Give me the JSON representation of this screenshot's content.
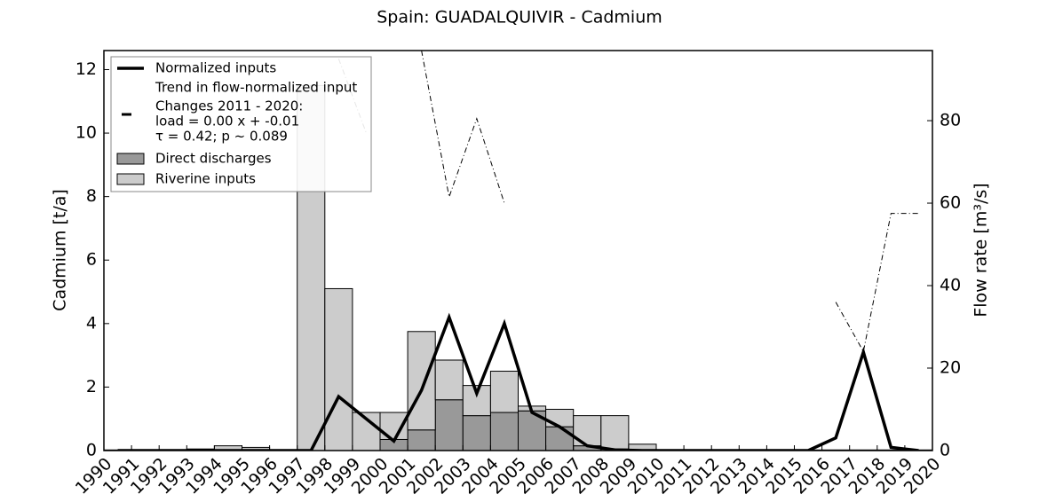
{
  "chart_data": {
    "type": "bar",
    "title": "Spain: GUADALQUIVIR - Cadmium",
    "ylabel": "Cadmium [t/a]",
    "y2label": "Flow rate [m³/s]",
    "xlim": [
      1990,
      2020
    ],
    "xticks": [
      1990,
      1991,
      1992,
      1993,
      1994,
      1995,
      1996,
      1997,
      1998,
      1999,
      2000,
      2001,
      2002,
      2003,
      2004,
      2005,
      2006,
      2007,
      2008,
      2009,
      2010,
      2011,
      2012,
      2013,
      2014,
      2015,
      2016,
      2017,
      2018,
      2019,
      2020
    ],
    "ylim": [
      0,
      12.6
    ],
    "yticks": [
      0,
      2,
      4,
      6,
      8,
      10,
      12
    ],
    "y2lim": [
      0,
      97
    ],
    "y2ticks": [
      0,
      20,
      40,
      60,
      80
    ],
    "series": [
      {
        "name": "Normalized inputs",
        "type": "line",
        "color": "#000000",
        "x": [
          1990.5,
          1991.5,
          1992.5,
          1993.5,
          1994.5,
          1995.5,
          1996.5,
          1997.5,
          1998.5,
          1999.5,
          2000.5,
          2001.5,
          2002.5,
          2003.5,
          2004.5,
          2005.5,
          2006.5,
          2007.5,
          2008.5,
          2009.5,
          2010.5,
          2011.5,
          2012.5,
          2013.5,
          2014.5,
          2015.5,
          2016.5,
          2017.5,
          2018.5,
          2019.5
        ],
        "values": [
          0,
          0,
          0,
          0,
          0,
          0,
          0,
          0,
          1.7,
          1.0,
          0.3,
          1.9,
          4.2,
          1.8,
          4.0,
          1.2,
          0.75,
          0.15,
          0.02,
          0,
          0,
          0,
          0,
          0,
          0,
          0,
          0.4,
          3.1,
          0.1,
          0
        ]
      },
      {
        "name": "Direct discharges",
        "type": "bar",
        "color": "#999999",
        "x": [
          1990,
          1991,
          1992,
          1993,
          1994,
          1995,
          1996,
          1997,
          1998,
          1999,
          2000,
          2001,
          2002,
          2003,
          2004,
          2005,
          2006,
          2007,
          2008,
          2009,
          2010,
          2011,
          2012,
          2013,
          2014,
          2015,
          2016,
          2017,
          2018,
          2019
        ],
        "values": [
          0,
          0,
          0,
          0,
          0,
          0,
          0,
          0,
          0,
          0,
          0.35,
          0.65,
          1.6,
          1.1,
          1.2,
          1.25,
          0.75,
          0.15,
          0.05,
          0,
          0,
          0,
          0,
          0,
          0,
          0,
          0,
          0,
          0,
          0
        ]
      },
      {
        "name": "Riverine inputs",
        "type": "bar",
        "color": "#cccccc",
        "x": [
          1990,
          1991,
          1992,
          1993,
          1994,
          1995,
          1996,
          1997,
          1998,
          1999,
          2000,
          2001,
          2002,
          2003,
          2004,
          2005,
          2006,
          2007,
          2008,
          2009,
          2010,
          2011,
          2012,
          2013,
          2014,
          2015,
          2016,
          2017,
          2018,
          2019
        ],
        "values": [
          0.02,
          0.02,
          0.02,
          0.05,
          0.15,
          0.1,
          0.02,
          11.5,
          5.1,
          1.2,
          0.85,
          3.1,
          1.25,
          0.95,
          1.3,
          0.15,
          0.55,
          0.95,
          1.05,
          0.2,
          0.02,
          0.02,
          0.02,
          0.02,
          0.02,
          0.02,
          0.02,
          0.02,
          0.02,
          0.02
        ]
      },
      {
        "type": "line",
        "axis": "y2",
        "color": "#000000",
        "x": [
          1990.5,
          1991.5,
          1992.5,
          1993.5,
          1994.5,
          1995.5,
          1996.5,
          1997.5,
          1998.5,
          1999.5,
          2000.5,
          2001.5,
          2002.5,
          2003.5,
          2004.5,
          2005.5,
          2006.5,
          2007.5,
          2008.5,
          2009.5,
          2010.5,
          2011.5,
          2012.5,
          2013.5,
          2014.5,
          2015.5,
          2016.5,
          2017.5,
          2018.5,
          2019.5
        ],
        "values": [
          null,
          null,
          null,
          null,
          null,
          null,
          null,
          null,
          95,
          77,
          null,
          97,
          61.5,
          80.5,
          60,
          null,
          null,
          null,
          null,
          null,
          null,
          null,
          null,
          null,
          null,
          null,
          36,
          24,
          57.5,
          57.5
        ]
      }
    ],
    "trend": {
      "name": "Trend in flow-normalized input",
      "text": [
        "Changes 2011 - 2020:",
        "load =  0.00 x + -0.01",
        "τ =  0.42; p ~ 0.089"
      ]
    }
  }
}
